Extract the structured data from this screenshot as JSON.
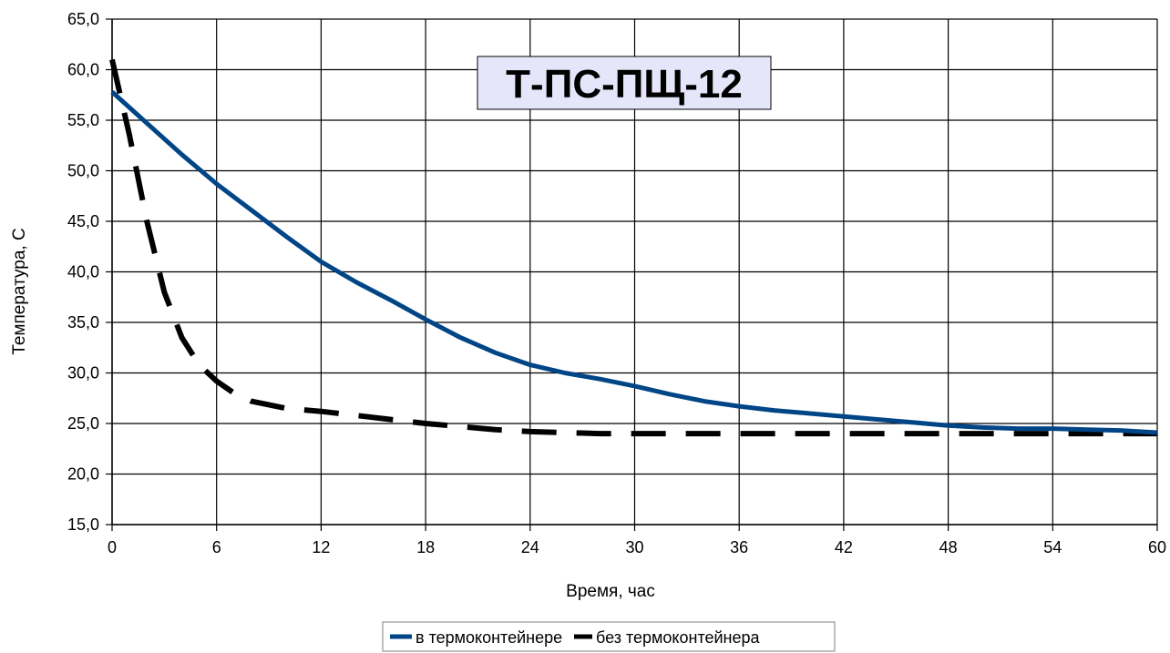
{
  "chart_data": {
    "type": "line",
    "title": "Т-ПС-ПЩ-12",
    "xlabel": "Время, час",
    "ylabel": "Температура, С",
    "xlim": [
      0,
      60
    ],
    "ylim": [
      15,
      65
    ],
    "x_ticks": [
      0,
      6,
      12,
      18,
      24,
      30,
      36,
      42,
      48,
      54,
      60
    ],
    "x_tick_labels": [
      "0",
      "6",
      "12",
      "18",
      "24",
      "30",
      "36",
      "42",
      "48",
      "54",
      "60"
    ],
    "y_ticks": [
      15,
      20,
      25,
      30,
      35,
      40,
      45,
      50,
      55,
      60,
      65
    ],
    "y_tick_labels": [
      "15,0",
      "20,0",
      "25,0",
      "30,0",
      "35,0",
      "40,0",
      "45,0",
      "50,0",
      "55,0",
      "60,0",
      "65,0"
    ],
    "grid": true,
    "legend_position": "bottom",
    "title_background": "#e6e6fa",
    "series": [
      {
        "name": "в термоконтейнере",
        "color": "#004586",
        "style": "solid",
        "x": [
          0,
          2,
          4,
          6,
          8,
          10,
          12,
          14,
          16,
          18,
          20,
          22,
          24,
          26,
          28,
          30,
          32,
          34,
          36,
          38,
          40,
          42,
          44,
          46,
          48,
          50,
          52,
          54,
          56,
          58,
          60
        ],
        "y": [
          57.8,
          54.7,
          51.6,
          48.7,
          46.1,
          43.5,
          41.0,
          39.0,
          37.2,
          35.3,
          33.5,
          32.0,
          30.8,
          30.0,
          29.4,
          28.7,
          27.9,
          27.2,
          26.7,
          26.3,
          26.0,
          25.7,
          25.4,
          25.1,
          24.8,
          24.6,
          24.5,
          24.5,
          24.4,
          24.3,
          24.1
        ]
      },
      {
        "name": "без термоконтейнера",
        "color": "#000000",
        "style": "dashed",
        "x": [
          0,
          1,
          2,
          3,
          4,
          5,
          6,
          7,
          8,
          10,
          12,
          14,
          16,
          18,
          20,
          22,
          24,
          26,
          28,
          30,
          32,
          34,
          36,
          40,
          44,
          48,
          52,
          56,
          60
        ],
        "y": [
          61.0,
          53.5,
          45.0,
          38.0,
          33.5,
          30.8,
          29.2,
          28.0,
          27.2,
          26.5,
          26.2,
          25.8,
          25.4,
          25.0,
          24.7,
          24.4,
          24.2,
          24.1,
          24.0,
          24.0,
          24.0,
          24.0,
          24.0,
          24.0,
          24.0,
          24.0,
          24.0,
          24.0,
          24.0
        ]
      }
    ]
  }
}
